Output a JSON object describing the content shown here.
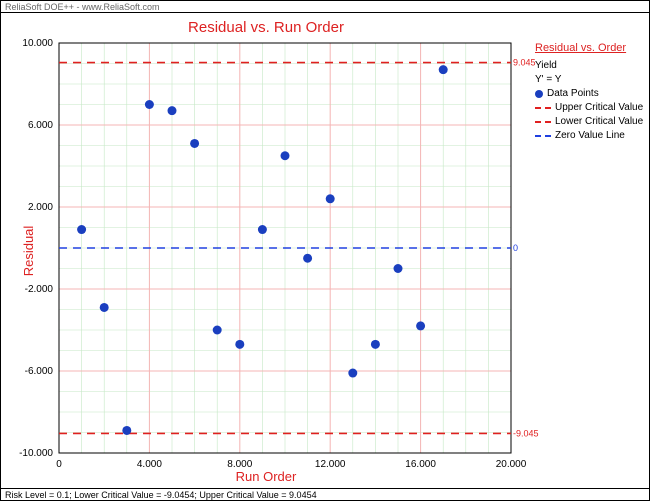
{
  "header_text": "ReliaSoft DOE++ - www.ReliaSoft.com",
  "footer_text": "Risk Level = 0.1; Lower Critical Value = -9.0454; Upper Critical Value = 9.0454",
  "chart": {
    "type": "scatter",
    "title": "Residual vs. Run Order",
    "xlabel": "Run Order",
    "ylabel": "Residual",
    "xlim": [
      0,
      20
    ],
    "ylim": [
      -10,
      10
    ],
    "xticks": [
      0,
      4,
      8,
      12,
      16,
      20
    ],
    "yticks": [
      -10,
      -6,
      -2,
      2,
      6,
      10
    ],
    "xtick_labels": [
      "0",
      "4.000",
      "8.000",
      "12.000",
      "16.000",
      "20.000"
    ],
    "ytick_labels": [
      "-10.000",
      "-6.000",
      "-2.000",
      "2.000",
      "6.000",
      "10.000"
    ],
    "minor_grid_step_x": 1,
    "minor_grid_step_y": 1,
    "major_grid_color": "#f5b5b5",
    "minor_grid_color": "#c5e8c5",
    "axis_color": "#000000",
    "background_color": "#ffffff",
    "marker_color": "#1a3fbf",
    "marker_radius": 4.5,
    "points": [
      {
        "x": 1,
        "y": 0.9
      },
      {
        "x": 2,
        "y": -2.9
      },
      {
        "x": 3,
        "y": -8.9
      },
      {
        "x": 4,
        "y": 7.0
      },
      {
        "x": 5,
        "y": 6.7
      },
      {
        "x": 6,
        "y": 5.1
      },
      {
        "x": 7,
        "y": -4.0
      },
      {
        "x": 8,
        "y": -4.7
      },
      {
        "x": 9,
        "y": 0.9
      },
      {
        "x": 10,
        "y": 4.5
      },
      {
        "x": 11,
        "y": -0.5
      },
      {
        "x": 12,
        "y": 2.4
      },
      {
        "x": 13,
        "y": -6.1
      },
      {
        "x": 14,
        "y": -4.7
      },
      {
        "x": 15,
        "y": -1.0
      },
      {
        "x": 16,
        "y": -3.8
      },
      {
        "x": 17,
        "y": 8.7
      }
    ],
    "ref_lines": [
      {
        "y": 9.045,
        "color": "#e02020",
        "dash": "8,6",
        "label_right": "9.045"
      },
      {
        "y": 0,
        "color": "#2040e0",
        "dash": "8,6",
        "label_right": "0"
      },
      {
        "y": -9.045,
        "color": "#e02020",
        "dash": "8,6",
        "label_right": "-9.045"
      }
    ]
  },
  "legend": {
    "title": "Residual vs. Order",
    "yield_label": "Yield",
    "yprime_label": "Y' = Y",
    "items": [
      {
        "type": "dot",
        "color": "#1a3fbf",
        "label": "Data Points"
      },
      {
        "type": "dash",
        "color": "#e02020",
        "label": "Upper Critical Value"
      },
      {
        "type": "dash",
        "color": "#e02020",
        "label": "Lower Critical Value"
      },
      {
        "type": "dash",
        "color": "#2040e0",
        "label": "Zero Value Line"
      }
    ]
  }
}
